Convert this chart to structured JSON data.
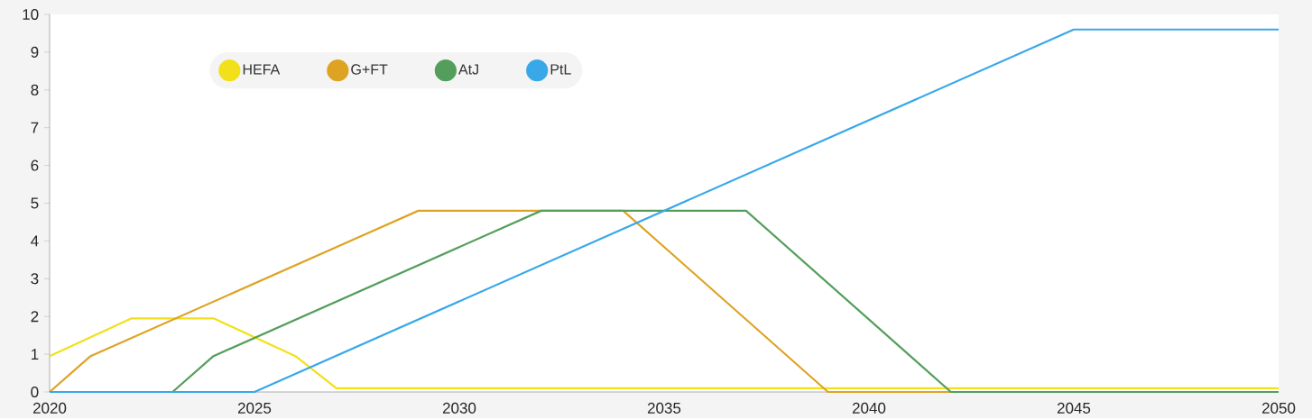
{
  "chart_data": {
    "type": "line",
    "series": [
      {
        "name": "HEFA",
        "color": "#f2e01a",
        "x": [
          2020,
          2022,
          2024,
          2026,
          2027,
          2050
        ],
        "values": [
          0.95,
          1.95,
          1.95,
          0.95,
          0.1,
          0.1
        ]
      },
      {
        "name": "G+FT",
        "color": "#dea323",
        "x": [
          2020,
          2021,
          2029,
          2034,
          2039,
          2050
        ],
        "values": [
          0,
          0.95,
          4.8,
          4.8,
          0,
          0
        ]
      },
      {
        "name": "AtJ",
        "color": "#549e5c",
        "x": [
          2020,
          2023,
          2024,
          2032,
          2037,
          2042,
          2050
        ],
        "values": [
          0,
          0,
          0.95,
          4.8,
          4.8,
          0,
          0
        ]
      },
      {
        "name": "PtL",
        "color": "#38a8e8",
        "x": [
          2020,
          2025,
          2045,
          2050
        ],
        "values": [
          0,
          0,
          9.6,
          9.6
        ]
      }
    ],
    "xlim": [
      2020,
      2050
    ],
    "xticks": [
      2020,
      2025,
      2030,
      2035,
      2040,
      2045,
      2050
    ],
    "ylim": [
      0,
      10
    ],
    "yticks": [
      0,
      1,
      2,
      3,
      4,
      5,
      6,
      7,
      8,
      9,
      10
    ],
    "grid": false,
    "legend": "top left",
    "marker": "none",
    "line_style": "solid"
  }
}
